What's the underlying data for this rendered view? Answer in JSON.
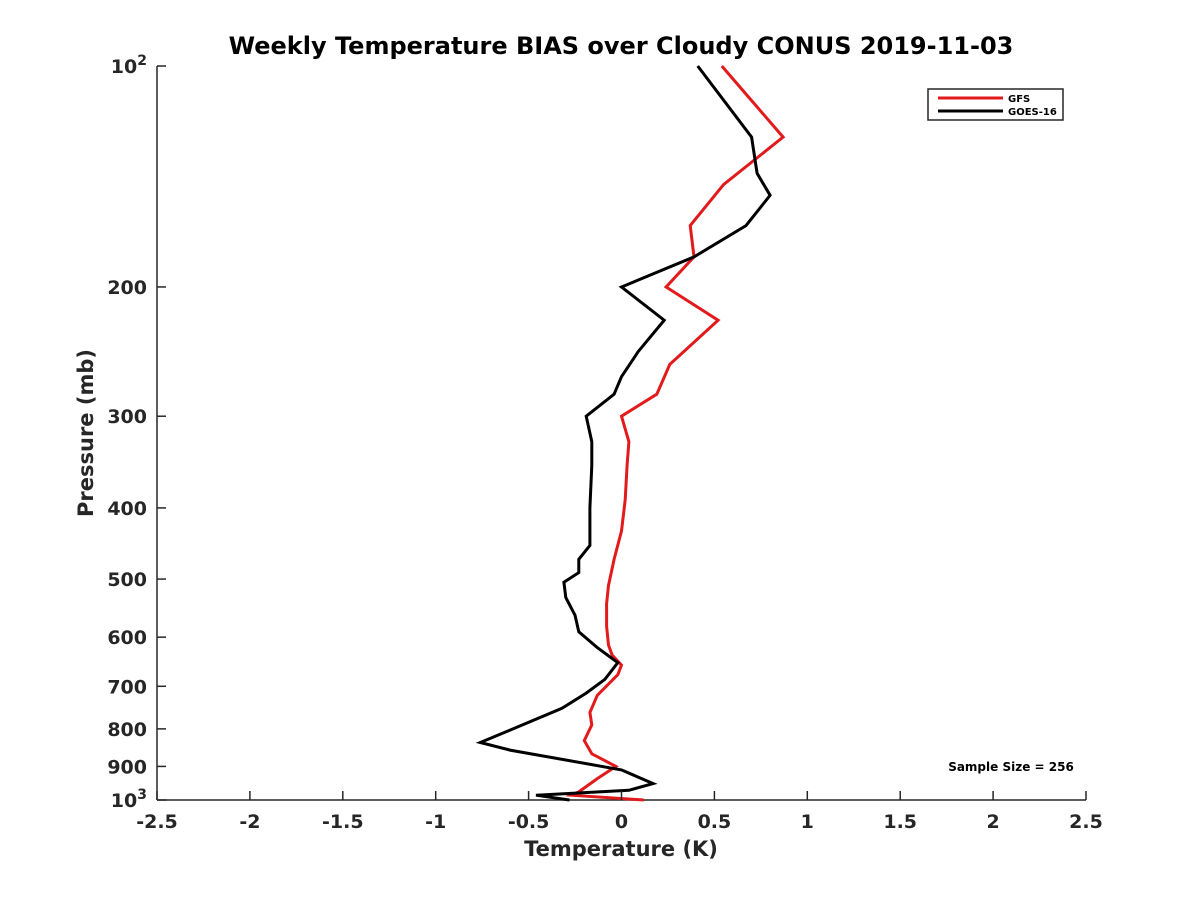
{
  "chart_data": {
    "type": "line",
    "title": "Weekly Temperature BIAS over Cloudy CONUS 2019-11-03",
    "xlabel": "Temperature (K)",
    "ylabel": "Pressure (mb)",
    "xlim": [
      -2.5,
      2.5
    ],
    "ylim": [
      1000,
      100
    ],
    "yscale": "log",
    "y_reversed": true,
    "x_ticks": [
      "-2.5",
      "-2",
      "-1.5",
      "-1",
      "-0.5",
      "0",
      "0.5",
      "1",
      "1.5",
      "2",
      "2.5"
    ],
    "x_tick_values": [
      -2.5,
      -2,
      -1.5,
      -1,
      -0.5,
      0,
      0.5,
      1,
      1.5,
      2,
      2.5
    ],
    "y_ticks": [
      {
        "value": 100,
        "base": "10",
        "exp": "2"
      },
      {
        "value": 200,
        "label": "200"
      },
      {
        "value": 300,
        "label": "300"
      },
      {
        "value": 400,
        "label": "400"
      },
      {
        "value": 500,
        "label": "500"
      },
      {
        "value": 600,
        "label": "600"
      },
      {
        "value": 700,
        "label": "700"
      },
      {
        "value": 800,
        "label": "800"
      },
      {
        "value": 900,
        "label": "900"
      },
      {
        "value": 1000,
        "base": "10",
        "exp": "3"
      }
    ],
    "grid": false,
    "legend": {
      "placement": "top-right",
      "entries": [
        "GFS",
        "GOES-16"
      ]
    },
    "annotation": "Sample Size = 256",
    "series": [
      {
        "name": "GFS",
        "color": "#e31a1c",
        "x": [
          0.54,
          0.87,
          0.55,
          0.37,
          0.39,
          0.24,
          0.52,
          0.26,
          0.19,
          0.0,
          0.04,
          0.03,
          0.02,
          0.0,
          -0.04,
          -0.07,
          -0.08,
          -0.08,
          -0.07,
          -0.05,
          0.0,
          -0.02,
          -0.13,
          -0.17,
          -0.16,
          -0.2,
          -0.16,
          -0.03,
          -0.13,
          -0.23,
          -0.27,
          0.12
        ],
        "y": [
          100,
          125,
          145,
          165,
          182,
          200,
          222,
          255,
          280,
          300,
          325,
          350,
          390,
          430,
          470,
          510,
          540,
          580,
          615,
          635,
          655,
          675,
          720,
          760,
          790,
          830,
          865,
          900,
          935,
          975,
          985,
          1000
        ]
      },
      {
        "name": "GOES-16",
        "color": "#000000",
        "x": [
          0.41,
          0.7,
          0.73,
          0.8,
          0.67,
          0.39,
          0.0,
          0.23,
          0.09,
          0.0,
          -0.04,
          -0.19,
          -0.16,
          -0.16,
          -0.17,
          -0.17,
          -0.23,
          -0.23,
          -0.31,
          -0.3,
          -0.25,
          -0.23,
          -0.13,
          -0.02,
          -0.09,
          -0.19,
          -0.32,
          -0.48,
          -0.61,
          -0.76,
          -0.6,
          0.0,
          0.17,
          0.04,
          -0.46,
          -0.28
        ],
        "y": [
          100,
          125,
          140,
          150,
          165,
          182,
          200,
          222,
          245,
          265,
          280,
          300,
          325,
          350,
          400,
          450,
          470,
          490,
          505,
          530,
          560,
          590,
          620,
          650,
          685,
          715,
          750,
          780,
          805,
          835,
          855,
          910,
          950,
          970,
          985,
          1000
        ]
      }
    ]
  }
}
